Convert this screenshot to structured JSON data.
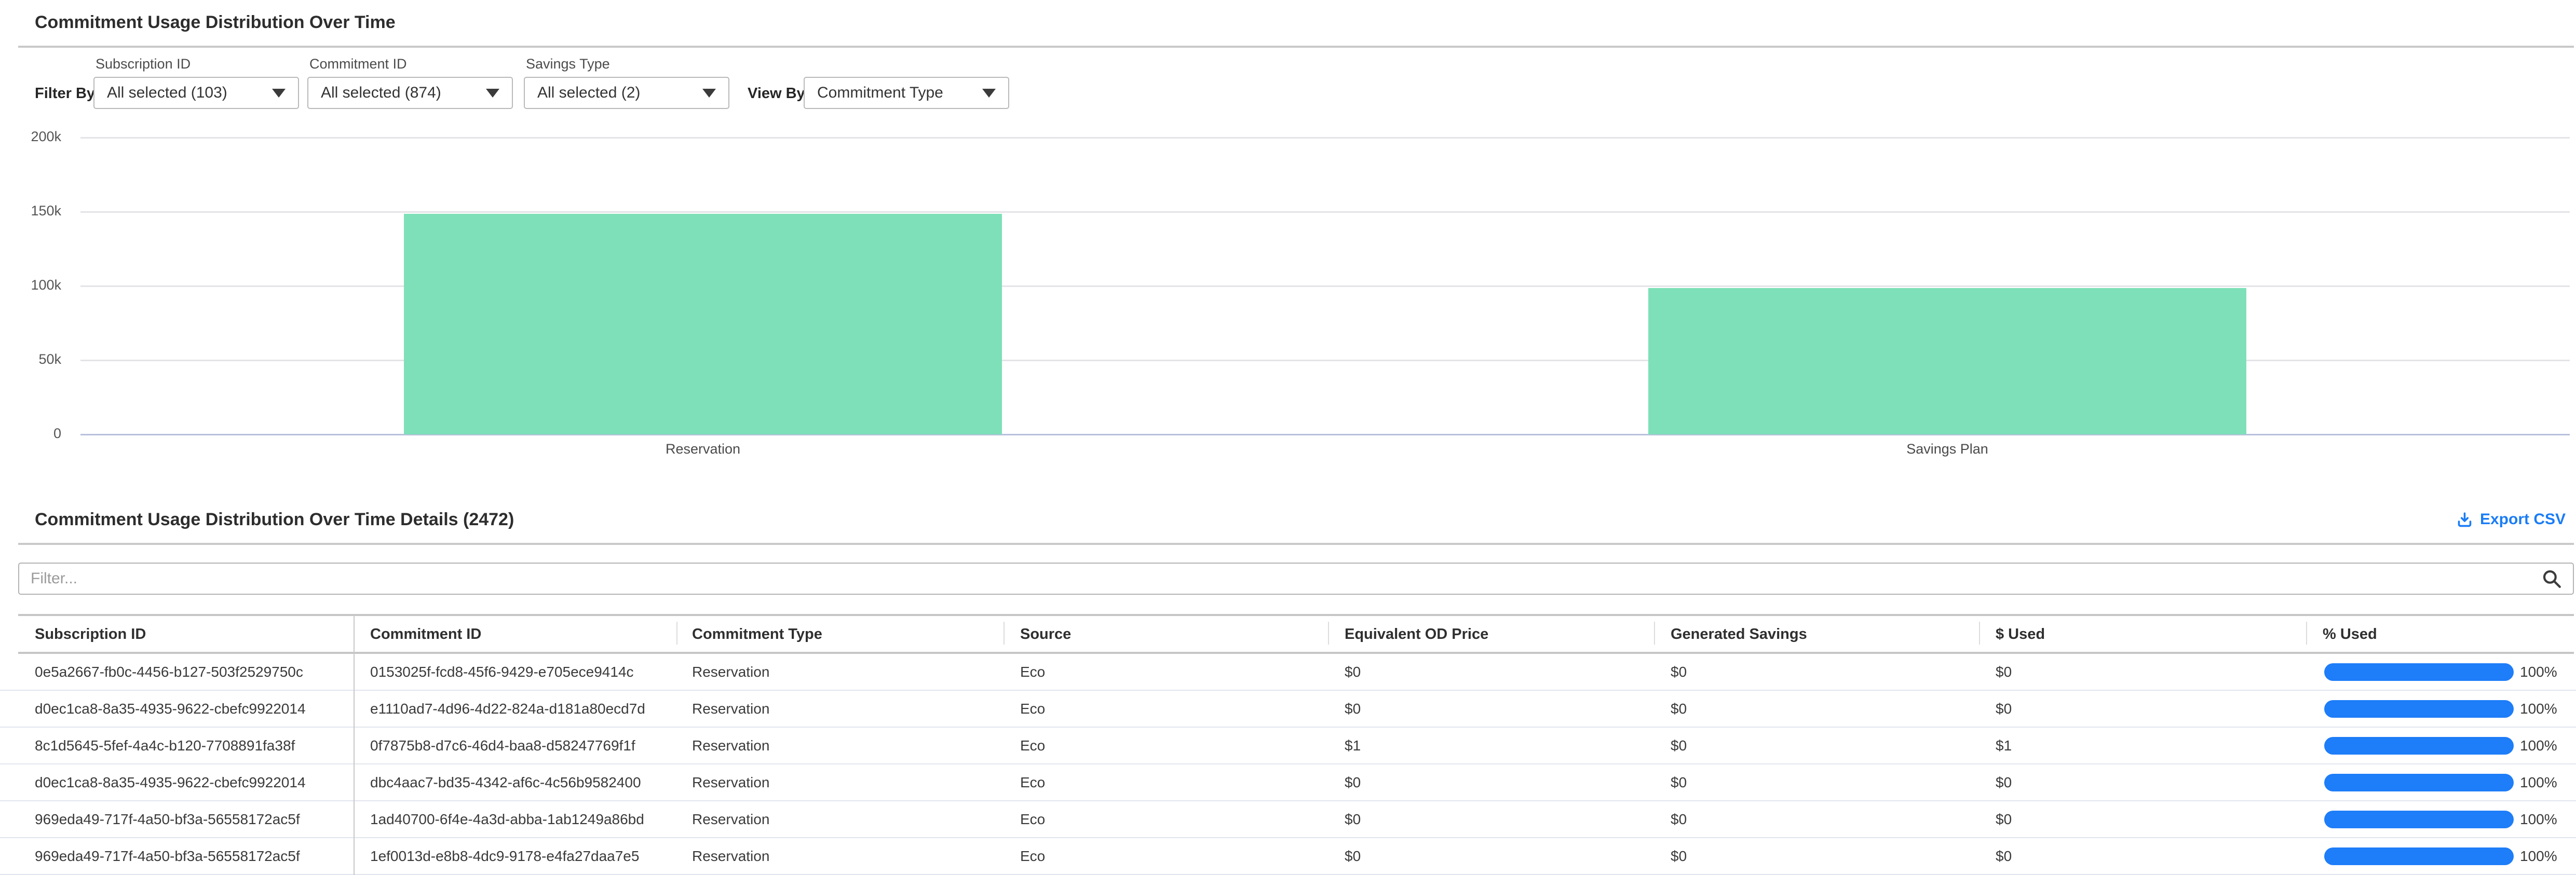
{
  "page": {
    "title": "Commitment Usage Distribution Over Time"
  },
  "filters": {
    "filter_by_label": "Filter By:",
    "view_by_label": "View By:",
    "dropdowns": [
      {
        "label": "Subscription ID",
        "value": "All selected (103)"
      },
      {
        "label": "Commitment ID",
        "value": "All selected (874)"
      },
      {
        "label": "Savings Type",
        "value": "All selected (2)"
      }
    ],
    "view_by": {
      "value": "Commitment Type"
    }
  },
  "chart_data": {
    "type": "bar",
    "title": "Commitment Usage Distribution Over Time",
    "categories": [
      "Reservation",
      "Savings Plan"
    ],
    "values": [
      148500,
      98500
    ],
    "xlabel": "",
    "ylabel": "",
    "ylim": [
      0,
      200000
    ],
    "yticks": [
      {
        "value": 0,
        "label": "0"
      },
      {
        "value": 50000,
        "label": "50k"
      },
      {
        "value": 100000,
        "label": "100k"
      },
      {
        "value": 150000,
        "label": "150k"
      },
      {
        "value": 200000,
        "label": "200k"
      }
    ],
    "grid": true,
    "legend": false,
    "bar_color": "#7ee0b8",
    "zero_line_color": "#b7c1dd"
  },
  "details": {
    "title": "Commitment Usage Distribution Over Time Details (2472)",
    "export_label": "Export CSV",
    "filter_placeholder": "Filter...",
    "accent_blue": "#1e7df8"
  },
  "table": {
    "columns": [
      "Subscription ID",
      "Commitment ID",
      "Commitment Type",
      "Source",
      "Equivalent OD Price",
      "Generated Savings",
      "$ Used",
      "% Used"
    ],
    "rows": [
      {
        "subscription_id": "0e5a2667-fb0c-4456-b127-503f2529750c",
        "commitment_id": "0153025f-fcd8-45f6-9429-e705ece9414c",
        "commitment_type": "Reservation",
        "source": "Eco",
        "equivalent_od_price": "$0",
        "generated_savings": "$0",
        "used": "$0",
        "pct_used": "100%",
        "pct_value": 100
      },
      {
        "subscription_id": "d0ec1ca8-8a35-4935-9622-cbefc9922014",
        "commitment_id": "e1110ad7-4d96-4d22-824a-d181a80ecd7d",
        "commitment_type": "Reservation",
        "source": "Eco",
        "equivalent_od_price": "$0",
        "generated_savings": "$0",
        "used": "$0",
        "pct_used": "100%",
        "pct_value": 100
      },
      {
        "subscription_id": "8c1d5645-5fef-4a4c-b120-7708891fa38f",
        "commitment_id": "0f7875b8-d7c6-46d4-baa8-d58247769f1f",
        "commitment_type": "Reservation",
        "source": "Eco",
        "equivalent_od_price": "$1",
        "generated_savings": "$0",
        "used": "$1",
        "pct_used": "100%",
        "pct_value": 100
      },
      {
        "subscription_id": "d0ec1ca8-8a35-4935-9622-cbefc9922014",
        "commitment_id": "dbc4aac7-bd35-4342-af6c-4c56b9582400",
        "commitment_type": "Reservation",
        "source": "Eco",
        "equivalent_od_price": "$0",
        "generated_savings": "$0",
        "used": "$0",
        "pct_used": "100%",
        "pct_value": 100
      },
      {
        "subscription_id": "969eda49-717f-4a50-bf3a-56558172ac5f",
        "commitment_id": "1ad40700-6f4e-4a3d-abba-1ab1249a86bd",
        "commitment_type": "Reservation",
        "source": "Eco",
        "equivalent_od_price": "$0",
        "generated_savings": "$0",
        "used": "$0",
        "pct_used": "100%",
        "pct_value": 100
      },
      {
        "subscription_id": "969eda49-717f-4a50-bf3a-56558172ac5f",
        "commitment_id": "1ef0013d-e8b8-4dc9-9178-e4fa27daa7e5",
        "commitment_type": "Reservation",
        "source": "Eco",
        "equivalent_od_price": "$0",
        "generated_savings": "$0",
        "used": "$0",
        "pct_used": "100%",
        "pct_value": 100
      }
    ]
  }
}
